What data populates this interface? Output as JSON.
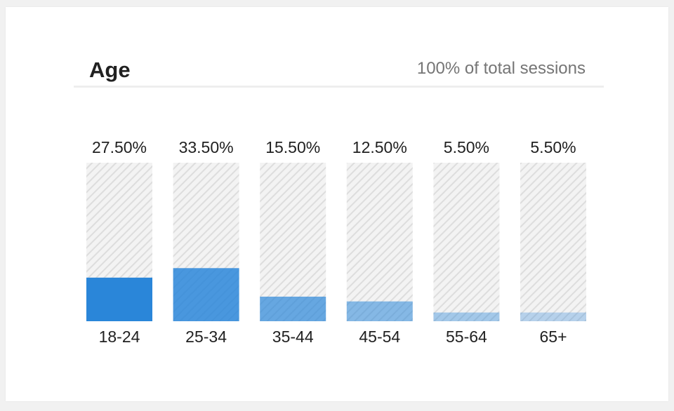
{
  "card": {
    "title": "Age",
    "subtitle": "100% of total sessions"
  },
  "colors": {
    "accent": "#2a86d9",
    "track_stripe": "#dcdcdc",
    "track_bg": "#f1f1f1"
  },
  "chart_data": {
    "type": "bar",
    "categories": [
      "18-24",
      "25-34",
      "35-44",
      "45-54",
      "55-64",
      "65+"
    ],
    "values": [
      27.5,
      33.5,
      15.5,
      12.5,
      5.5,
      5.5
    ],
    "value_labels": [
      "27.50%",
      "33.50%",
      "15.50%",
      "12.50%",
      "5.50%",
      "5.50%"
    ],
    "title": "Age",
    "subtitle": "100% of total sessions",
    "xlabel": "",
    "ylabel": "",
    "ylim": [
      0,
      100
    ],
    "grid": false,
    "bar_opacity": [
      1.0,
      0.85,
      0.7,
      0.55,
      0.4,
      0.3
    ]
  }
}
